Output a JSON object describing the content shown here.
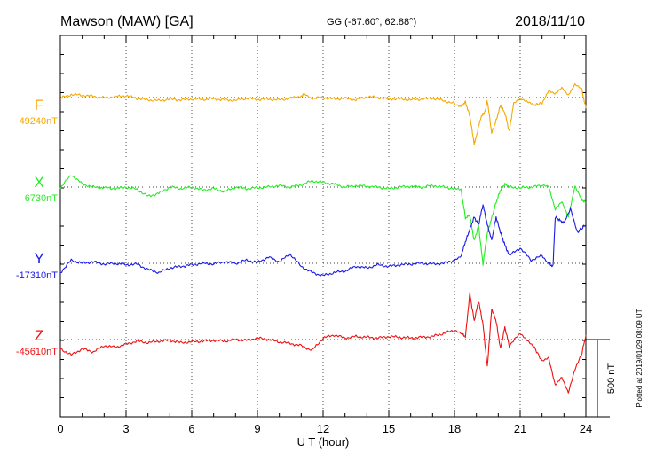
{
  "header": {
    "station": "Mawson (MAW)  [GA]",
    "coords": "GG (-67.60°,  62.88°)",
    "date": "2018/11/10"
  },
  "footer": {
    "plotted": "Plotted at 2019/01/29 08:09 UT"
  },
  "chart_data": {
    "type": "line",
    "xlabel": "U T (hour)",
    "ylabel": "",
    "xlim": [
      0,
      24
    ],
    "x_ticks": [
      "0",
      "3",
      "6",
      "9",
      "12",
      "15",
      "18",
      "21",
      "24"
    ],
    "grid": true,
    "scale_bar_label": "500 nT",
    "series": [
      {
        "name": "F",
        "baseline_label": "49240nT",
        "color": "#f5a800",
        "x": [
          0,
          0.5,
          1,
          1.5,
          2,
          2.5,
          3,
          3.5,
          4,
          4.5,
          5,
          5.5,
          6,
          6.5,
          7,
          7.5,
          8,
          8.5,
          9,
          9.5,
          10,
          10.5,
          11,
          11.2,
          11.5,
          12,
          12.5,
          13,
          13.5,
          14,
          14.5,
          15,
          15.5,
          16,
          16.5,
          17,
          17.5,
          18,
          18.3,
          18.5,
          18.7,
          18.9,
          19.0,
          19.2,
          19.4,
          19.5,
          19.7,
          19.9,
          20.1,
          20.3,
          20.5,
          20.7,
          21,
          21.3,
          21.6,
          22,
          22.3,
          22.6,
          22.9,
          23.2,
          23.5,
          23.8,
          24
        ],
        "values": [
          -5,
          20,
          15,
          8,
          -2,
          5,
          12,
          -5,
          -15,
          -20,
          -10,
          -15,
          -10,
          -12,
          -8,
          -15,
          -18,
          -5,
          -12,
          -10,
          -15,
          -5,
          10,
          25,
          -5,
          0,
          -10,
          -5,
          -15,
          5,
          0,
          -10,
          -8,
          -15,
          -10,
          -5,
          -20,
          -40,
          -55,
          -30,
          -120,
          -300,
          -250,
          -130,
          -90,
          -20,
          -230,
          -150,
          -50,
          -100,
          -220,
          -40,
          -10,
          -30,
          -50,
          -35,
          50,
          30,
          70,
          20,
          90,
          60,
          -70
        ]
      },
      {
        "name": "X",
        "baseline_label": "6730nT",
        "color": "#22ee22",
        "x": [
          0,
          0.5,
          1,
          1.5,
          2,
          2.5,
          3,
          3.5,
          4,
          4.5,
          5,
          5.5,
          6,
          6.5,
          7,
          7.5,
          8,
          8.5,
          9,
          9.5,
          10,
          10.5,
          11,
          11.5,
          12,
          12.5,
          13,
          13.5,
          14,
          14.5,
          15,
          15.5,
          16,
          16.5,
          17,
          17.5,
          18,
          18.3,
          18.5,
          18.7,
          18.9,
          19.1,
          19.3,
          19.5,
          19.7,
          19.9,
          20.1,
          20.3,
          20.5,
          21,
          21.5,
          22,
          22.3,
          22.6,
          22.9,
          23.2,
          23.5,
          23.8,
          24
        ],
        "values": [
          -5,
          80,
          20,
          0,
          -5,
          -10,
          0,
          -15,
          -60,
          -40,
          0,
          -10,
          0,
          -20,
          -10,
          -30,
          0,
          -10,
          -5,
          0,
          10,
          0,
          15,
          40,
          30,
          20,
          0,
          10,
          5,
          0,
          -10,
          0,
          5,
          0,
          10,
          0,
          -10,
          -20,
          -200,
          -180,
          -350,
          -250,
          -500,
          -300,
          -200,
          -100,
          -20,
          20,
          0,
          -5,
          0,
          10,
          0,
          -150,
          -100,
          -200,
          0,
          -80,
          -100
        ]
      },
      {
        "name": "Y",
        "baseline_label": "-17310nT",
        "color": "#1a1ae6",
        "x": [
          0,
          0.5,
          1,
          1.5,
          2,
          2.5,
          3,
          3.5,
          4,
          4.5,
          5,
          5.5,
          6,
          6.5,
          7,
          7.5,
          8,
          8.5,
          9,
          9.5,
          10,
          10.5,
          11,
          11.5,
          12,
          12.5,
          13,
          13.5,
          14,
          14.5,
          15,
          15.5,
          16,
          16.5,
          17,
          17.5,
          18,
          18.3,
          18.5,
          18.7,
          18.9,
          19.1,
          19.3,
          19.5,
          19.7,
          19.9,
          20.1,
          20.3,
          20.5,
          21,
          21.5,
          22,
          22.3,
          22.5,
          22.6,
          22.8,
          23,
          23.3,
          23.6,
          24
        ],
        "values": [
          -60,
          20,
          0,
          10,
          -5,
          0,
          -10,
          -5,
          -40,
          -60,
          -30,
          -20,
          -10,
          0,
          -5,
          10,
          0,
          20,
          5,
          40,
          10,
          60,
          -20,
          -60,
          -80,
          -60,
          -50,
          -20,
          -30,
          -10,
          -20,
          -10,
          -5,
          0,
          -5,
          0,
          20,
          50,
          140,
          220,
          300,
          250,
          380,
          250,
          150,
          300,
          200,
          120,
          50,
          100,
          20,
          50,
          0,
          -20,
          300,
          280,
          260,
          350,
          200,
          250
        ]
      },
      {
        "name": "Z",
        "baseline_label": "-45610nT",
        "color": "#ee1111",
        "x": [
          0,
          0.5,
          1,
          1.5,
          2,
          2.5,
          3,
          3.5,
          4,
          4.5,
          5,
          5.5,
          6,
          6.5,
          7,
          7.5,
          8,
          8.5,
          9,
          9.5,
          10,
          10.5,
          11,
          11.5,
          12,
          12.5,
          13,
          13.5,
          14,
          14.5,
          15,
          15.5,
          16,
          16.5,
          17,
          17.5,
          18,
          18.3,
          18.5,
          18.7,
          18.9,
          19.1,
          19.3,
          19.5,
          19.7,
          19.9,
          20.1,
          20.3,
          20.5,
          21,
          21.3,
          21.6,
          22,
          22.3,
          22.6,
          22.9,
          23.2,
          23.5,
          23.8,
          24
        ],
        "values": [
          -60,
          -100,
          -60,
          -80,
          -40,
          -50,
          -30,
          -10,
          -20,
          -10,
          -5,
          -20,
          -15,
          -10,
          -5,
          -10,
          0,
          -5,
          10,
          0,
          -15,
          -25,
          -40,
          -70,
          10,
          30,
          10,
          20,
          15,
          10,
          20,
          15,
          10,
          15,
          20,
          40,
          60,
          40,
          20,
          300,
          120,
          250,
          100,
          -180,
          200,
          120,
          -60,
          80,
          -40,
          40,
          0,
          -40,
          -140,
          -120,
          -300,
          -250,
          -350,
          -200,
          -100,
          30
        ]
      }
    ]
  }
}
